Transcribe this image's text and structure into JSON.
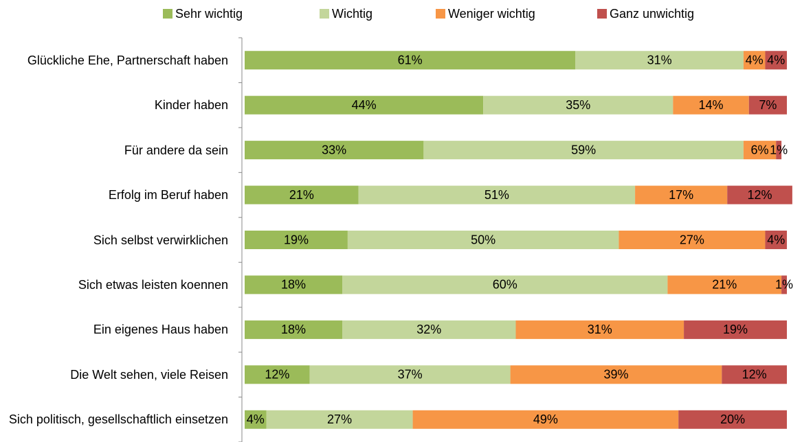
{
  "chart_data": {
    "type": "stacked-barh",
    "categories": [
      "Glückliche Ehe, Partnerschaft haben",
      "Kinder haben",
      "Für andere da sein",
      "Erfolg im Beruf haben",
      "Sich selbst verwirklichen",
      "Sich etwas leisten koennen",
      "Ein eigenes Haus haben",
      "Die Welt sehen, viele Reisen",
      "Sich politisch, gesellschaftlich einsetzen"
    ],
    "xlim": [
      0,
      100
    ],
    "legend": "top",
    "series": [
      {
        "name": "Sehr wichtig",
        "color": "#9bbb59",
        "values": [
          61,
          44,
          33,
          21,
          19,
          18,
          18,
          12,
          4
        ],
        "value_labels": [
          "61%",
          "44%",
          "33%",
          "21%",
          "19%",
          "18%",
          "18%",
          "12%",
          "4%"
        ]
      },
      {
        "name": "Wichtig",
        "color": "#c3d69b",
        "values": [
          31,
          35,
          59,
          51,
          50,
          60,
          32,
          37,
          27
        ],
        "value_labels": [
          "31%",
          "35%",
          "59%",
          "51%",
          "50%",
          "60%",
          "32%",
          "37%",
          "27%"
        ]
      },
      {
        "name": "Weniger wichtig",
        "color": "#f79646",
        "values": [
          4,
          14,
          6,
          17,
          27,
          21,
          31,
          39,
          49
        ],
        "value_labels": [
          "4%",
          "14%",
          "6%",
          "17%",
          "27%",
          "21%",
          "31%",
          "39%",
          "49%"
        ]
      },
      {
        "name": "Ganz unwichtig",
        "color": "#c0504d",
        "values": [
          4,
          7,
          1,
          12,
          4,
          1,
          19,
          12,
          20
        ],
        "value_labels": [
          "4%",
          "7%",
          "1%",
          "12%",
          "4%",
          "1%",
          "19%",
          "12%",
          "20%"
        ]
      }
    ]
  }
}
